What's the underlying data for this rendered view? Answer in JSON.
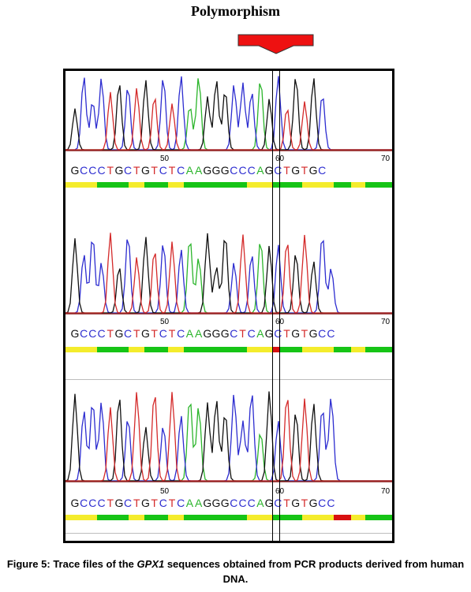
{
  "header": {
    "title": "Polymorphism"
  },
  "colors": {
    "A": "#2bb52b",
    "C": "#2d2dd0",
    "G": "#111111",
    "T": "#d42a2a",
    "arrow": "#ee1111",
    "qual_high": "#16c416",
    "qual_mid": "#f4ec2c",
    "qual_low": "#d81010"
  },
  "panels": [
    {
      "seq": "GCCCTGCTGTCTCAAGGGCCCAGCTGTGC",
      "ticks": [
        "50",
        "60",
        "70"
      ]
    },
    {
      "seq": "GCCCTGCTGTCTCAAGGGCTCAGCTGTGCC",
      "ticks": [
        "50",
        "60",
        "70"
      ]
    },
    {
      "seq": "GCCCTGCTGTCTCAAGGGCCCAGCTGTGCC",
      "ticks": [
        "50",
        "60",
        "70"
      ]
    }
  ],
  "caption": {
    "prefix": "Figure 5: Trace files of the ",
    "gene": "GPX1",
    "suffix": " sequences obtained from PCR products derived from human DNA."
  }
}
